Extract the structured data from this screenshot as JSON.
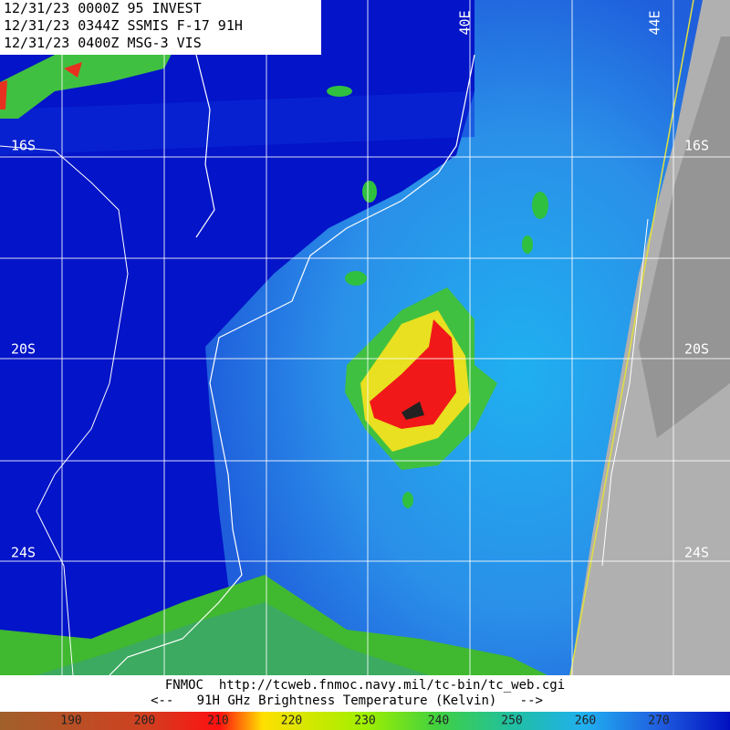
{
  "header": {
    "lines": [
      "12/31/23 0000Z  95 INVEST",
      "12/31/23 0344Z  SSMIS F-17 91H",
      "12/31/23 0400Z  MSG-3 VIS"
    ]
  },
  "map": {
    "lat_labels": [
      "16S",
      "20S",
      "24S"
    ],
    "lon_labels": [
      "40E",
      "44E"
    ]
  },
  "footer": {
    "source": "FNMOC  http://tcweb.fnmoc.navy.mil/tc-bin/tc_web.cgi",
    "legend_title": "<--   91H GHz Brightness Temperature (Kelvin)   -->"
  },
  "colorbar": {
    "labels": [
      190,
      200,
      210,
      220,
      230,
      240,
      250,
      260,
      270
    ]
  }
}
